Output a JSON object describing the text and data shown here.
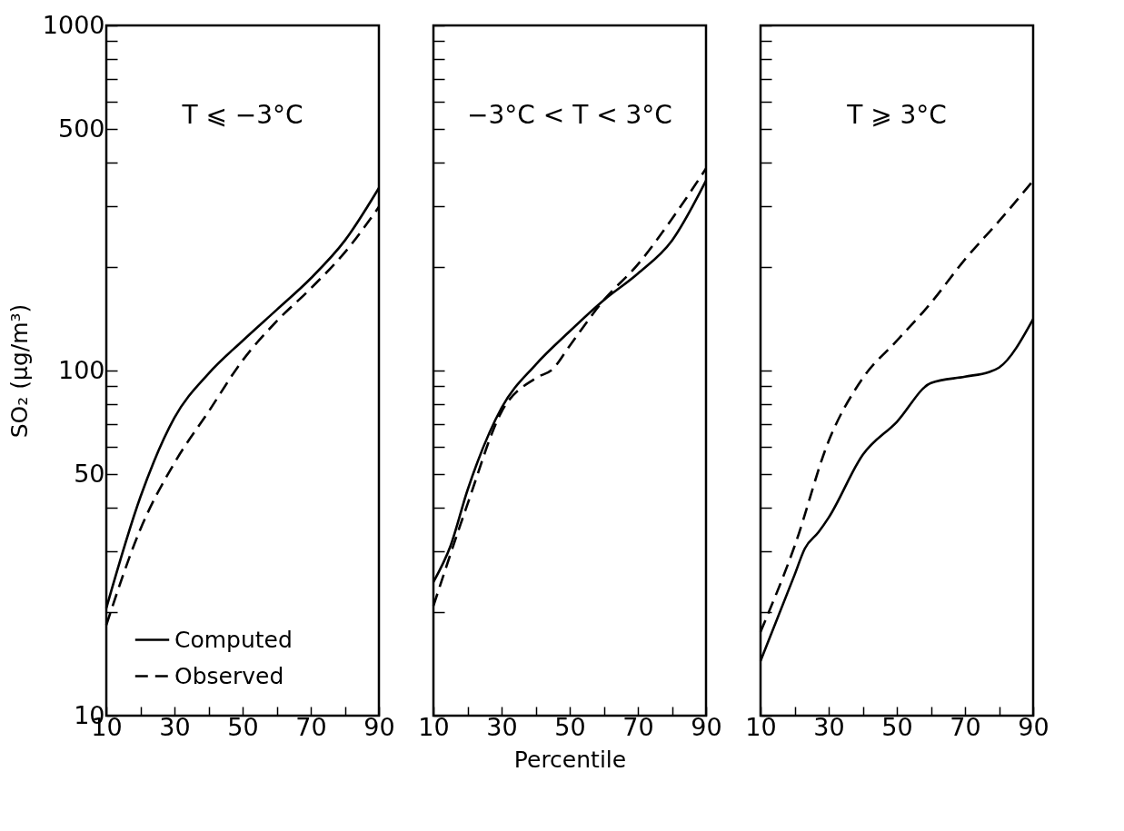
{
  "chart_data": [
    {
      "type": "line",
      "title": "T ⩽ −3°C",
      "ylabel": "SO₂ (μg/m³)",
      "log": "y",
      "grid": false,
      "legend": "bottom left",
      "marker": "none",
      "xlim": [
        10,
        90
      ],
      "xticks": [
        10,
        {
          "value": 20,
          "label": null
        },
        30,
        {
          "value": 40,
          "label": null
        },
        50,
        {
          "value": 60,
          "label": null
        },
        70,
        {
          "value": 80,
          "label": null
        },
        90
      ],
      "ylim": [
        10,
        1000
      ],
      "yticks": [
        10,
        {
          "value": 20,
          "label": null
        },
        {
          "value": 30,
          "label": null
        },
        {
          "value": 40,
          "label": null
        },
        50,
        {
          "value": 60,
          "label": null
        },
        {
          "value": 70,
          "label": null
        },
        {
          "value": 80,
          "label": null
        },
        {
          "value": 90,
          "label": null
        },
        100,
        {
          "value": 200,
          "label": null
        },
        {
          "value": 300,
          "label": null
        },
        {
          "value": 400,
          "label": null
        },
        500,
        {
          "value": 600,
          "label": null
        },
        {
          "value": 700,
          "label": null
        },
        {
          "value": 800,
          "label": null
        },
        {
          "value": 900,
          "label": null
        },
        1000
      ],
      "x": [
        10,
        20,
        30,
        40,
        50,
        60,
        70,
        80,
        90
      ],
      "series": [
        {
          "name": "Computed",
          "color": "#000000",
          "line_style": "solid",
          "values": [
            20.5,
            43,
            73,
            98,
            122,
            150,
            185,
            238,
            338
          ]
        },
        {
          "name": "Observed",
          "color": "#000000",
          "line_style": "dashed",
          "values": [
            18.3,
            34.7,
            54,
            76,
            107,
            139,
            173,
            220,
            298
          ]
        }
      ]
    },
    {
      "type": "line",
      "title": "−3°C < T < 3°C",
      "xlabel": "Percentile",
      "log": "y",
      "grid": false,
      "marker": "none",
      "tick_labels": "x",
      "xlim": [
        10,
        90
      ],
      "xticks": [
        10,
        {
          "value": 20,
          "label": null
        },
        30,
        {
          "value": 40,
          "label": null
        },
        50,
        {
          "value": 60,
          "label": null
        },
        70,
        {
          "value": 80,
          "label": null
        },
        90
      ],
      "ylim": [
        10,
        1000
      ],
      "yticks": [
        10,
        {
          "value": 20,
          "label": null
        },
        {
          "value": 30,
          "label": null
        },
        {
          "value": 40,
          "label": null
        },
        50,
        {
          "value": 60,
          "label": null
        },
        {
          "value": 70,
          "label": null
        },
        {
          "value": 80,
          "label": null
        },
        {
          "value": 90,
          "label": null
        },
        100,
        {
          "value": 200,
          "label": null
        },
        {
          "value": 300,
          "label": null
        },
        {
          "value": 400,
          "label": null
        },
        500,
        {
          "value": 600,
          "label": null
        },
        {
          "value": 700,
          "label": null
        },
        {
          "value": 800,
          "label": null
        },
        {
          "value": 900,
          "label": null
        },
        1000
      ],
      "series": [
        {
          "color": "#000000",
          "line_style": "solid",
          "x": [
            10,
            15,
            20,
            30,
            40,
            50,
            60,
            70,
            80,
            90
          ],
          "values": [
            24.4,
            31,
            45,
            78,
            104,
            130,
            160,
            191,
            238,
            355
          ]
        },
        {
          "color": "#000000",
          "line_style": "dashed",
          "x": [
            10,
            20,
            30,
            40,
            45,
            50,
            60,
            70,
            80,
            90
          ],
          "values": [
            20.8,
            41,
            76,
            95,
            101,
            118,
            160,
            203,
            275,
            385
          ]
        }
      ]
    },
    {
      "type": "line",
      "title": "T ⩾ 3°C",
      "log": "y",
      "grid": false,
      "marker": "none",
      "tick_labels": "x",
      "xlim": [
        10,
        90
      ],
      "xticks": [
        10,
        {
          "value": 20,
          "label": null
        },
        30,
        {
          "value": 40,
          "label": null
        },
        50,
        {
          "value": 60,
          "label": null
        },
        70,
        {
          "value": 80,
          "label": null
        },
        90
      ],
      "ylim": [
        10,
        1000
      ],
      "yticks": [
        10,
        {
          "value": 20,
          "label": null
        },
        {
          "value": 30,
          "label": null
        },
        {
          "value": 40,
          "label": null
        },
        50,
        {
          "value": 60,
          "label": null
        },
        {
          "value": 70,
          "label": null
        },
        {
          "value": 80,
          "label": null
        },
        {
          "value": 90,
          "label": null
        },
        100,
        {
          "value": 200,
          "label": null
        },
        {
          "value": 300,
          "label": null
        },
        {
          "value": 400,
          "label": null
        },
        500,
        {
          "value": 600,
          "label": null
        },
        {
          "value": 700,
          "label": null
        },
        {
          "value": 800,
          "label": null
        },
        {
          "value": 900,
          "label": null
        },
        1000
      ],
      "series": [
        {
          "color": "#000000",
          "line_style": "solid",
          "x": [
            10,
            20,
            23,
            27,
            30,
            40,
            50,
            60,
            70,
            77,
            80,
            90
          ],
          "values": [
            14.4,
            25.6,
            30.5,
            34,
            37.5,
            57,
            71,
            92,
            96,
            99,
            102,
            141
          ]
        },
        {
          "color": "#000000",
          "line_style": "dashed",
          "x": [
            10,
            20,
            30,
            40,
            50,
            60,
            70,
            80,
            90
          ],
          "values": [
            17.5,
            31,
            62.5,
            95,
            122,
            157,
            210,
            271,
            355
          ]
        }
      ]
    }
  ]
}
